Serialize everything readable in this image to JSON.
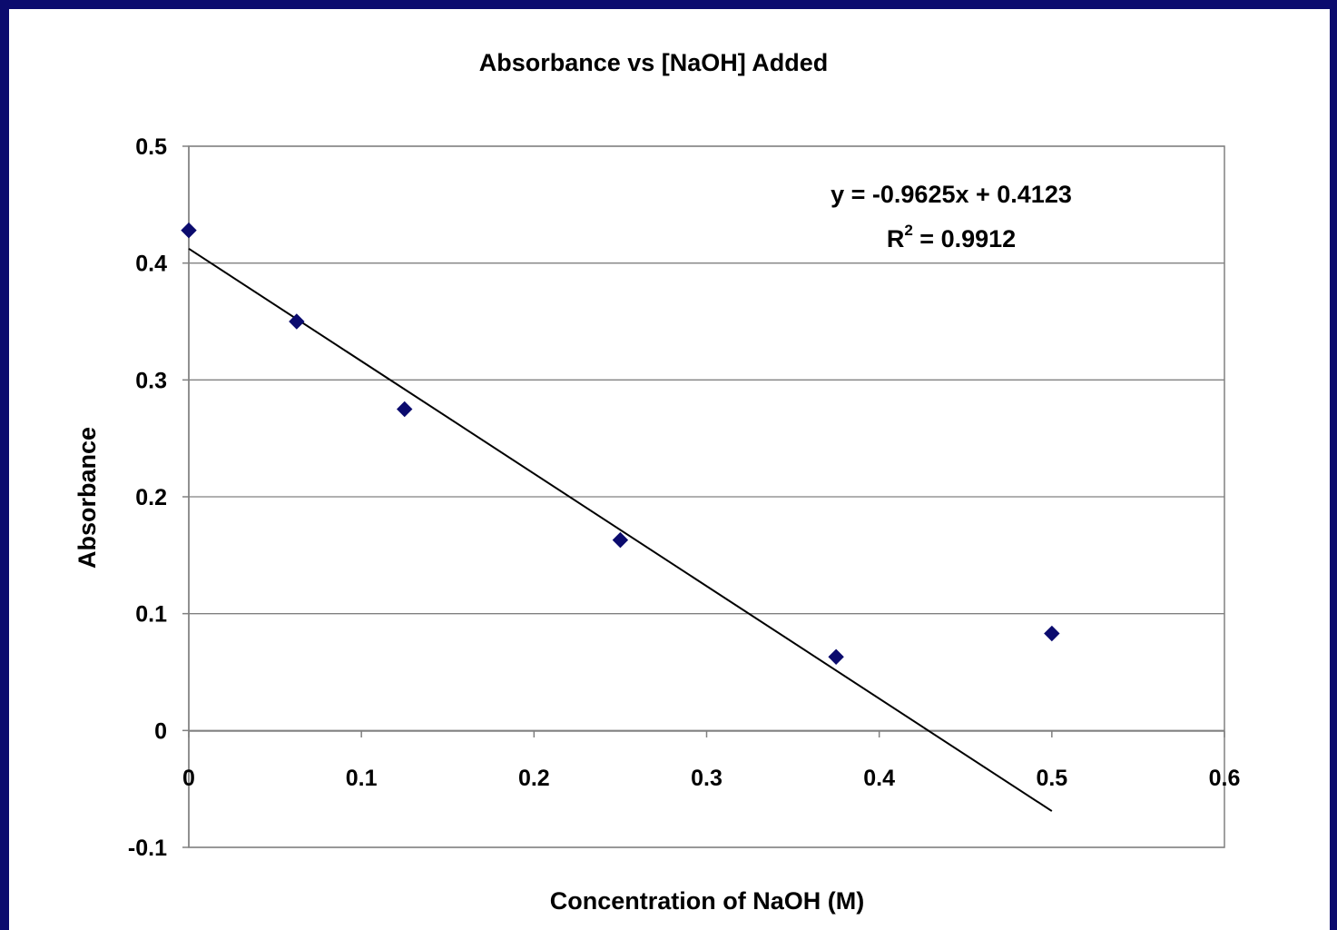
{
  "chart_data": {
    "type": "scatter",
    "title": "Absorbance vs [NaOH] Added",
    "xlabel": "Concentration of NaOH (M)",
    "ylabel": "Absorbance",
    "xlim": [
      0,
      0.6
    ],
    "ylim": [
      -0.1,
      0.5
    ],
    "x_ticks": [
      0,
      0.1,
      0.2,
      0.3,
      0.4,
      0.5,
      0.6
    ],
    "x_tick_labels": [
      "0",
      "0.1",
      "0.2",
      "0.3",
      "0.4",
      "0.5",
      "0.6"
    ],
    "y_ticks": [
      -0.1,
      0,
      0.1,
      0.2,
      0.3,
      0.4,
      0.5
    ],
    "y_tick_labels": [
      "-0.1",
      "0",
      "0.1",
      "0.2",
      "0.3",
      "0.4",
      "0.5"
    ],
    "grid": "horizontal",
    "series": [
      {
        "x": [
          0,
          0.0625,
          0.125,
          0.25,
          0.375,
          0.5
        ],
        "y": [
          0.428,
          0.35,
          0.275,
          0.163,
          0.063,
          0.083
        ],
        "color": "#0b0b6e",
        "marker": "diamond"
      }
    ],
    "trendline": {
      "slope": -0.9625,
      "intercept": 0.4123,
      "x_range": [
        0,
        0.5
      ],
      "equation": "y = -0.9625x + 0.4123",
      "r2_prefix": "R",
      "r2_exponent": "2",
      "r2_suffix": " = 0.9912"
    }
  }
}
